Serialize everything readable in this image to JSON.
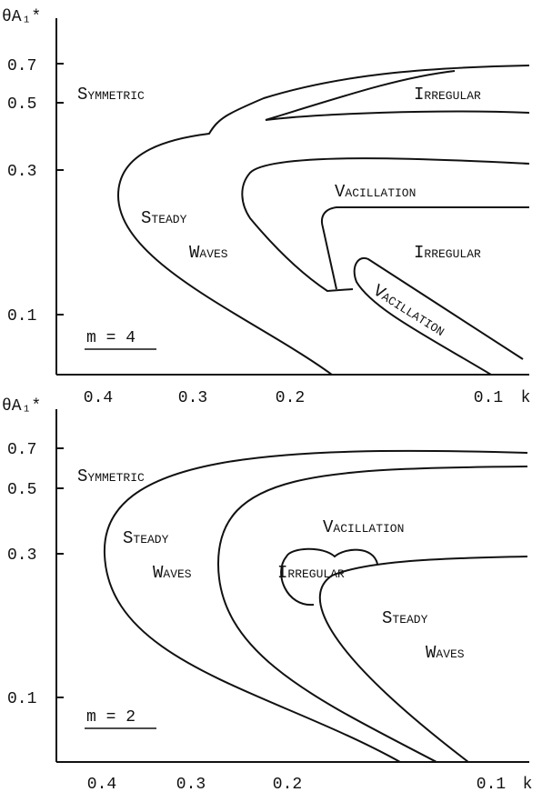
{
  "panels": [
    {
      "y_axis_label": "θA₁*",
      "y_ticks": [
        "0.7",
        "0.5",
        "0.3",
        "0.1"
      ],
      "x_ticks": [
        "0.4",
        "0.3",
        "0.2",
        "0.1"
      ],
      "x_axis_label": "k",
      "regions": [
        "Symmetric",
        "Irregular",
        "Steady",
        "Waves",
        "Vacillation",
        "Irregular",
        "Vacillation"
      ],
      "mode_label": "m = 4"
    },
    {
      "y_axis_label": "θA₁*",
      "y_ticks": [
        "0.7",
        "0.5",
        "0.3",
        "0.1"
      ],
      "x_ticks": [
        "0.4",
        "0.3",
        "0.2",
        "0.1"
      ],
      "x_axis_label": "k",
      "regions": [
        "Symmetric",
        "Steady",
        "Waves",
        "Vacillation",
        "Irregular",
        "Steady",
        "Waves"
      ],
      "mode_label": "m = 2"
    }
  ]
}
